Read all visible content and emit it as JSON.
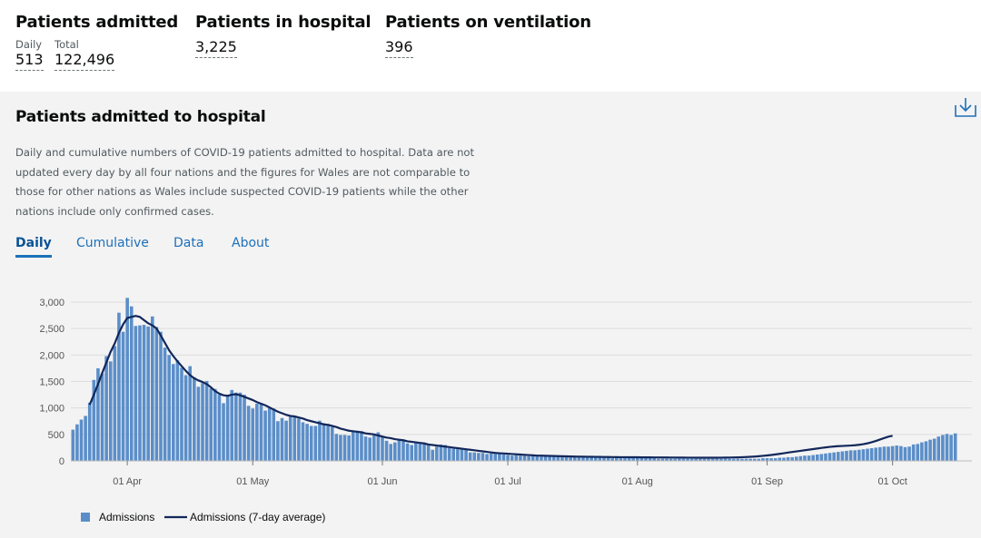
{
  "headline": {
    "admitted": {
      "title": "Patients admitted",
      "daily_label": "Daily",
      "daily_value": "513",
      "total_label": "Total",
      "total_value": "122,496"
    },
    "in_hospital": {
      "title": "Patients in hospital",
      "value": "3,225"
    },
    "ventilation": {
      "title": "Patients on ventilation",
      "value": "396"
    }
  },
  "card": {
    "title": "Patients admitted to hospital",
    "download_icon": "download-icon",
    "description": "Daily and cumulative numbers of COVID-19 patients admitted to hospital. Data are not updated every day by all four nations and the figures for Wales are not comparable to those for other nations as Wales include suspected COVID-19 patients while the other nations include only confirmed cases.",
    "tabs": [
      "Daily",
      "Cumulative",
      "Data",
      "About"
    ],
    "active_tab": "Daily"
  },
  "colors": {
    "bar": "#5b8ec9",
    "line": "#12275a",
    "tab": "#1d70b8",
    "grid": "#dddddd"
  },
  "chart_data": {
    "type": "bar",
    "start_date": "2020-03-19",
    "x_tick_labels": [
      "01 Apr",
      "01 May",
      "01 Jun",
      "01 Jul",
      "01 Aug",
      "01 Sep",
      "01 Oct"
    ],
    "y_tick_labels": [
      "0",
      "500",
      "1,000",
      "1,500",
      "2,000",
      "2,500",
      "3,000"
    ],
    "ylim": [
      0,
      3100
    ],
    "grid": true,
    "legend_placement": "bottom-left",
    "series": [
      {
        "name": "Admissions",
        "kind": "bar",
        "values": [
          590,
          690,
          780,
          850,
          1100,
          1530,
          1750,
          1650,
          1980,
          1880,
          2170,
          2800,
          2440,
          3080,
          2920,
          2550,
          2560,
          2570,
          2540,
          2730,
          2530,
          2440,
          2140,
          2000,
          1830,
          1900,
          1760,
          1620,
          1790,
          1580,
          1400,
          1470,
          1510,
          1370,
          1360,
          1250,
          1090,
          1240,
          1340,
          1290,
          1290,
          1250,
          1040,
          990,
          1080,
          1070,
          950,
          1020,
          990,
          750,
          810,
          760,
          850,
          830,
          800,
          730,
          700,
          660,
          660,
          760,
          710,
          700,
          640,
          510,
          490,
          490,
          480,
          570,
          570,
          560,
          460,
          440,
          480,
          540,
          470,
          380,
          320,
          350,
          390,
          380,
          330,
          300,
          350,
          340,
          330,
          300,
          210,
          270,
          310,
          300,
          240,
          230,
          220,
          240,
          230,
          160,
          160,
          150,
          150,
          130,
          140,
          130,
          140,
          120,
          110,
          100,
          110,
          100,
          100,
          90,
          90,
          90,
          80,
          80,
          80,
          90,
          90,
          70,
          80,
          80,
          80,
          70,
          60,
          60,
          60,
          70,
          60,
          60,
          60,
          50,
          50,
          50,
          50,
          50,
          50,
          50,
          50,
          50,
          50,
          50,
          40,
          40,
          40,
          40,
          40,
          40,
          40,
          40,
          40,
          40,
          40,
          40,
          40,
          40,
          40,
          40,
          40,
          40,
          40,
          40,
          40,
          40,
          40,
          40,
          40,
          50,
          50,
          50,
          50,
          60,
          60,
          70,
          70,
          80,
          90,
          100,
          100,
          110,
          120,
          130,
          140,
          150,
          160,
          170,
          180,
          190,
          200,
          200,
          210,
          220,
          230,
          240,
          250,
          260,
          270,
          270,
          280,
          290,
          280,
          260,
          270,
          310,
          320,
          350,
          370,
          400,
          420,
          460,
          490,
          510,
          490,
          520
        ]
      },
      {
        "name": "Admissions (7-day average)",
        "kind": "line",
        "values": [
          null,
          null,
          null,
          null,
          1060,
          1250,
          1450,
          1660,
          1860,
          2060,
          2220,
          2420,
          2580,
          2700,
          2720,
          2740,
          2720,
          2660,
          2600,
          2560,
          2500,
          2370,
          2230,
          2090,
          1980,
          1880,
          1790,
          1700,
          1620,
          1560,
          1520,
          1490,
          1450,
          1390,
          1320,
          1270,
          1240,
          1230,
          1250,
          1260,
          1240,
          1210,
          1180,
          1150,
          1110,
          1080,
          1050,
          1010,
          970,
          930,
          900,
          870,
          850,
          840,
          820,
          800,
          770,
          750,
          730,
          710,
          690,
          680,
          660,
          640,
          610,
          590,
          570,
          560,
          550,
          540,
          520,
          510,
          500,
          480,
          460,
          440,
          430,
          410,
          400,
          390,
          370,
          360,
          350,
          340,
          330,
          310,
          300,
          290,
          280,
          270,
          260,
          250,
          240,
          230,
          220,
          210,
          200,
          190,
          180,
          170,
          160,
          150,
          145,
          140,
          135,
          130,
          125,
          120,
          115,
          110,
          105,
          100,
          98,
          96,
          94,
          92,
          90,
          88,
          86,
          84,
          82,
          80,
          79,
          78,
          77,
          76,
          75,
          74,
          73,
          72,
          71,
          70,
          70,
          69,
          68,
          68,
          67,
          66,
          66,
          65,
          65,
          64,
          64,
          63,
          63,
          62,
          62,
          61,
          61,
          60,
          60,
          60,
          60,
          60,
          60,
          61,
          62,
          63,
          65,
          67,
          70,
          73,
          77,
          82,
          88,
          95,
          103,
          112,
          122,
          133,
          145,
          157,
          168,
          179,
          190,
          201,
          212,
          223,
          234,
          245,
          255,
          265,
          272,
          278,
          282,
          286,
          290,
          296,
          304,
          316,
          332,
          352,
          376,
          404,
          432,
          458,
          475
        ]
      }
    ]
  }
}
